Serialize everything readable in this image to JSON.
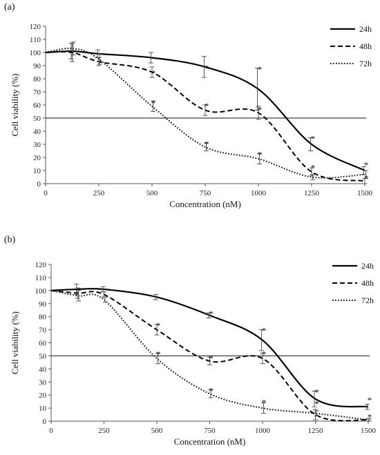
{
  "chart_data": [
    {
      "type": "line",
      "panel_label": "(a)",
      "xlabel": "Concentration (nM)",
      "ylabel": "Cell viability (%)",
      "x_ticks": [
        0,
        250,
        500,
        750,
        1000,
        1250,
        1500
      ],
      "y_ticks": [
        0,
        10,
        20,
        30,
        40,
        50,
        60,
        70,
        80,
        90,
        100,
        110,
        120
      ],
      "xlim": [
        0,
        1500
      ],
      "ylim": [
        0,
        120
      ],
      "reference_line": 50,
      "legend_position": "top-right",
      "x": [
        0,
        125,
        250,
        500,
        750,
        1000,
        1250,
        1500
      ],
      "series": [
        {
          "name": "24h",
          "style": "solid",
          "values": [
            100,
            101,
            99,
            96,
            89,
            72,
            30,
            10
          ],
          "errors": [
            0,
            6,
            3,
            4,
            8,
            16,
            5,
            3
          ]
        },
        {
          "name": "48h",
          "style": "dashed",
          "values": [
            100,
            100,
            93,
            85,
            56,
            54,
            9,
            2
          ],
          "errors": [
            0,
            7,
            3,
            4,
            4,
            5,
            3,
            2
          ]
        },
        {
          "name": "72h",
          "style": "dotted",
          "values": [
            100,
            103,
            95,
            59,
            28,
            19,
            5,
            7
          ],
          "errors": [
            0,
            5,
            4,
            4,
            3,
            4,
            2,
            3
          ]
        }
      ],
      "markers": [
        {
          "x": 500,
          "y": 85,
          "text": "*"
        },
        {
          "x": 500,
          "y": 62,
          "text": "*"
        },
        {
          "x": 750,
          "y": 89,
          "text": "*"
        },
        {
          "x": 750,
          "y": 60,
          "text": "*"
        },
        {
          "x": 750,
          "y": 31,
          "text": "*"
        },
        {
          "x": 1000,
          "y": 88,
          "text": "*"
        },
        {
          "x": 1000,
          "y": 57,
          "text": "*"
        },
        {
          "x": 1000,
          "y": 23,
          "text": "*"
        },
        {
          "x": 1250,
          "y": 35,
          "text": "*"
        },
        {
          "x": 1250,
          "y": 13,
          "text": "*"
        },
        {
          "x": 1500,
          "y": 15,
          "text": "*"
        },
        {
          "x": 1500,
          "y": 5,
          "text": "*"
        }
      ]
    },
    {
      "type": "line",
      "panel_label": "(b)",
      "xlabel": "Concentration (nM)",
      "ylabel": "Cell viability (%)",
      "x_ticks": [
        0,
        250,
        500,
        750,
        1000,
        1250,
        1500
      ],
      "y_ticks": [
        0,
        10,
        20,
        30,
        40,
        50,
        60,
        70,
        80,
        90,
        100,
        110,
        120
      ],
      "xlim": [
        0,
        1500
      ],
      "ylim": [
        0,
        120
      ],
      "reference_line": 50,
      "legend_position": "top-right",
      "x": [
        0,
        125,
        250,
        500,
        750,
        1000,
        1250,
        1500
      ],
      "series": [
        {
          "name": "24h",
          "style": "solid",
          "values": [
            100,
            101,
            101,
            95,
            81,
            62,
            17,
            11
          ],
          "errors": [
            0,
            4,
            2,
            2,
            2,
            8,
            6,
            2
          ]
        },
        {
          "name": "48h",
          "style": "dashed",
          "values": [
            100,
            98,
            97,
            70,
            46,
            48,
            5,
            1
          ],
          "errors": [
            0,
            4,
            2,
            4,
            3,
            4,
            4,
            1
          ]
        },
        {
          "name": "72h",
          "style": "dotted",
          "values": [
            100,
            96,
            93,
            48,
            21,
            10,
            6,
            1
          ],
          "errors": [
            0,
            4,
            2,
            4,
            3,
            4,
            2,
            1
          ]
        }
      ],
      "markers": [
        {
          "x": 500,
          "y": 74,
          "text": "*"
        },
        {
          "x": 500,
          "y": 52,
          "text": "*"
        },
        {
          "x": 750,
          "y": 83,
          "text": "*"
        },
        {
          "x": 750,
          "y": 49,
          "text": "*"
        },
        {
          "x": 750,
          "y": 24,
          "text": "*"
        },
        {
          "x": 1000,
          "y": 70,
          "text": "*"
        },
        {
          "x": 1000,
          "y": 52,
          "text": "*"
        },
        {
          "x": 1000,
          "y": 15,
          "text": "*"
        },
        {
          "x": 1250,
          "y": 23,
          "text": "*"
        },
        {
          "x": 1250,
          "y": 14,
          "text": "*"
        },
        {
          "x": 1500,
          "y": 17,
          "text": "*"
        },
        {
          "x": 1500,
          "y": 4,
          "text": "*"
        }
      ]
    }
  ]
}
